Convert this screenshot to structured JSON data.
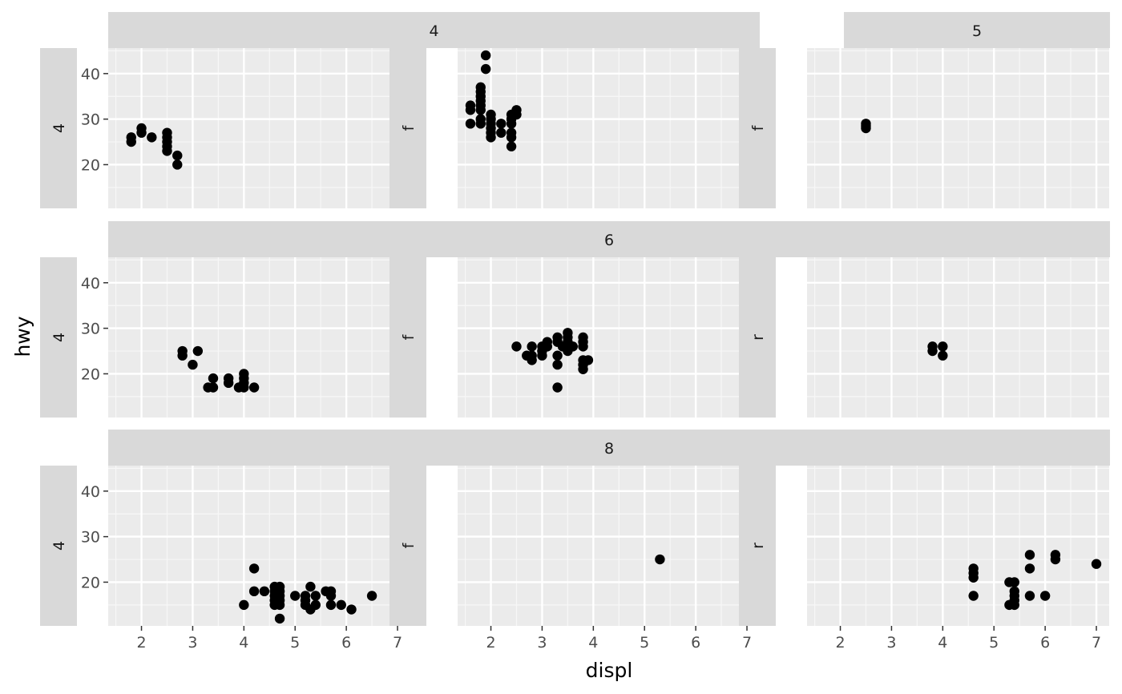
{
  "chart_data": {
    "type": "scatter",
    "xlabel": "displ",
    "ylabel": "hwy",
    "xlim": [
      1.35,
      7.25
    ],
    "ylim": [
      10.4,
      45.6
    ],
    "xticks": [
      2,
      3,
      4,
      5,
      6,
      7
    ],
    "yticks": [
      20,
      30,
      40
    ],
    "grid": true,
    "panels": [
      {
        "cyl": "4",
        "drv": "4",
        "show_cyl_strip": true,
        "points": [
          [
            1.8,
            26
          ],
          [
            1.8,
            25
          ],
          [
            2.0,
            28
          ],
          [
            2.0,
            27
          ],
          [
            2.2,
            26
          ],
          [
            2.5,
            27
          ],
          [
            2.5,
            26
          ],
          [
            2.5,
            25
          ],
          [
            2.5,
            24
          ],
          [
            2.5,
            23
          ],
          [
            2.7,
            22
          ],
          [
            2.7,
            20
          ]
        ]
      },
      {
        "cyl": "4",
        "drv": "f",
        "show_cyl_strip": false,
        "points": [
          [
            1.6,
            33
          ],
          [
            1.6,
            32
          ],
          [
            1.6,
            29
          ],
          [
            1.8,
            37
          ],
          [
            1.8,
            36
          ],
          [
            1.8,
            35
          ],
          [
            1.8,
            34
          ],
          [
            1.8,
            33
          ],
          [
            1.8,
            32
          ],
          [
            1.8,
            30
          ],
          [
            1.8,
            29
          ],
          [
            1.9,
            44
          ],
          [
            1.9,
            41
          ],
          [
            2.0,
            31
          ],
          [
            2.0,
            30
          ],
          [
            2.0,
            29
          ],
          [
            2.0,
            28
          ],
          [
            2.0,
            27
          ],
          [
            2.0,
            26
          ],
          [
            2.2,
            29
          ],
          [
            2.2,
            27
          ],
          [
            2.4,
            31
          ],
          [
            2.4,
            30
          ],
          [
            2.4,
            29
          ],
          [
            2.4,
            27
          ],
          [
            2.4,
            26
          ],
          [
            2.4,
            24
          ],
          [
            2.5,
            32
          ],
          [
            2.5,
            31
          ]
        ]
      },
      {
        "cyl": "5",
        "drv": "f",
        "show_cyl_strip": true,
        "points": [
          [
            2.5,
            29
          ],
          [
            2.5,
            28.5
          ],
          [
            2.5,
            28
          ]
        ]
      },
      {
        "cyl": "6",
        "drv": "4",
        "show_cyl_strip": true,
        "points": [
          [
            2.8,
            25
          ],
          [
            2.8,
            24
          ],
          [
            3.0,
            22
          ],
          [
            3.1,
            25
          ],
          [
            3.3,
            17
          ],
          [
            3.4,
            19
          ],
          [
            3.4,
            17
          ],
          [
            3.7,
            19
          ],
          [
            3.7,
            18
          ],
          [
            3.9,
            17
          ],
          [
            4.0,
            20
          ],
          [
            4.0,
            19
          ],
          [
            4.0,
            18
          ],
          [
            4.0,
            17
          ],
          [
            4.2,
            17
          ]
        ]
      },
      {
        "cyl": "6",
        "drv": "f",
        "show_cyl_strip": false,
        "points": [
          [
            2.5,
            26
          ],
          [
            2.7,
            24
          ],
          [
            2.8,
            26
          ],
          [
            2.8,
            24
          ],
          [
            2.8,
            23
          ],
          [
            3.0,
            26
          ],
          [
            3.0,
            25
          ],
          [
            3.0,
            24
          ],
          [
            3.1,
            27
          ],
          [
            3.1,
            26
          ],
          [
            3.3,
            28
          ],
          [
            3.3,
            27
          ],
          [
            3.3,
            24
          ],
          [
            3.3,
            22
          ],
          [
            3.3,
            17
          ],
          [
            3.4,
            26
          ],
          [
            3.5,
            29
          ],
          [
            3.5,
            28
          ],
          [
            3.5,
            27
          ],
          [
            3.5,
            26
          ],
          [
            3.5,
            25
          ],
          [
            3.6,
            26
          ],
          [
            3.8,
            28
          ],
          [
            3.8,
            27
          ],
          [
            3.8,
            26
          ],
          [
            3.8,
            23
          ],
          [
            3.8,
            22
          ],
          [
            3.8,
            21
          ],
          [
            3.9,
            23
          ]
        ]
      },
      {
        "cyl": "6",
        "drv": "r",
        "show_cyl_strip": false,
        "points": [
          [
            3.8,
            26
          ],
          [
            3.8,
            25
          ],
          [
            4.0,
            26
          ],
          [
            4.0,
            24
          ]
        ]
      },
      {
        "cyl": "8",
        "drv": "4",
        "show_cyl_strip": true,
        "points": [
          [
            4.0,
            15
          ],
          [
            4.2,
            23
          ],
          [
            4.2,
            18
          ],
          [
            4.4,
            18
          ],
          [
            4.6,
            19
          ],
          [
            4.6,
            18
          ],
          [
            4.6,
            17
          ],
          [
            4.6,
            16
          ],
          [
            4.6,
            15
          ],
          [
            4.7,
            19
          ],
          [
            4.7,
            18
          ],
          [
            4.7,
            17
          ],
          [
            4.7,
            16
          ],
          [
            4.7,
            15
          ],
          [
            4.7,
            12
          ],
          [
            5.0,
            17
          ],
          [
            5.2,
            17
          ],
          [
            5.2,
            16
          ],
          [
            5.2,
            15
          ],
          [
            5.3,
            19
          ],
          [
            5.3,
            14
          ],
          [
            5.4,
            17
          ],
          [
            5.4,
            15
          ],
          [
            5.6,
            18
          ],
          [
            5.7,
            18
          ],
          [
            5.7,
            17
          ],
          [
            5.7,
            15
          ],
          [
            5.9,
            15
          ],
          [
            6.1,
            14
          ],
          [
            6.5,
            17
          ]
        ]
      },
      {
        "cyl": "8",
        "drv": "f",
        "show_cyl_strip": false,
        "points": [
          [
            5.3,
            25
          ]
        ]
      },
      {
        "cyl": "8",
        "drv": "r",
        "show_cyl_strip": false,
        "points": [
          [
            4.6,
            23
          ],
          [
            4.6,
            22
          ],
          [
            4.6,
            21
          ],
          [
            4.6,
            17
          ],
          [
            5.3,
            20
          ],
          [
            5.3,
            15
          ],
          [
            5.4,
            20
          ],
          [
            5.4,
            18
          ],
          [
            5.4,
            17
          ],
          [
            5.4,
            16
          ],
          [
            5.4,
            15
          ],
          [
            5.7,
            26
          ],
          [
            5.7,
            23
          ],
          [
            5.7,
            17
          ],
          [
            6.0,
            17
          ],
          [
            6.2,
            26
          ],
          [
            6.2,
            25
          ],
          [
            7.0,
            24
          ]
        ]
      }
    ]
  }
}
